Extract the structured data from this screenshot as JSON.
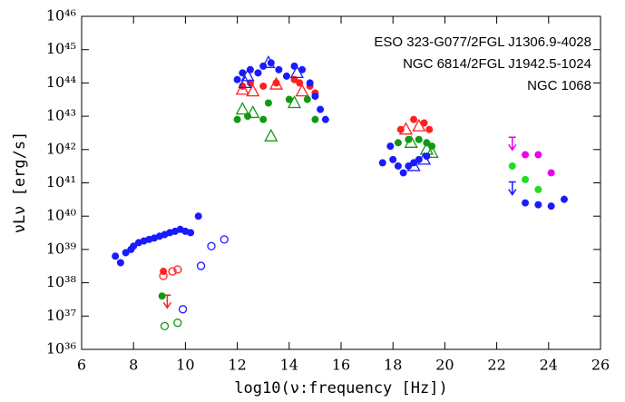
{
  "chart_data": {
    "type": "scatter",
    "xlabel": "log10(ν:frequency [Hz])",
    "ylabel": "νLν [erg/s]",
    "xlim": [
      6,
      26
    ],
    "xticks": [
      6,
      8,
      10,
      12,
      14,
      16,
      18,
      20,
      22,
      24,
      26
    ],
    "ylim": [
      1e+36,
      1e+46
    ],
    "log_y": true,
    "yticks": [
      {
        "value": 1e+36,
        "label": "10³⁶"
      },
      {
        "value": 1e+37,
        "label": "10³⁷"
      },
      {
        "value": 1e+38,
        "label": "10³⁸"
      },
      {
        "value": 1e+39,
        "label": "10³⁹"
      },
      {
        "value": 1e+40,
        "label": "10⁴⁰"
      },
      {
        "value": 1e+41,
        "label": "10⁴¹"
      },
      {
        "value": 1e+42,
        "label": "10⁴²"
      },
      {
        "value": 1e+43,
        "label": "10⁴³"
      },
      {
        "value": 1e+44,
        "label": "10⁴⁴"
      },
      {
        "value": 1e+45,
        "label": "10⁴⁵"
      },
      {
        "value": 1e+46,
        "label": "10⁴⁶"
      }
    ],
    "legend_position": "upper right",
    "legend_separator": "/",
    "series": [
      {
        "name": "ESO 323-G077",
        "color": "#ff2020",
        "x": [
          9.15,
          9.15,
          9.5,
          9.7,
          9.3,
          12.2,
          12.5,
          13.0,
          13.5,
          14.2,
          14.4,
          14.8,
          15.0,
          12.2,
          12.6,
          13.5,
          14.5,
          18.3,
          18.8,
          19.2,
          19.4,
          18.5,
          19.0
        ],
        "values": [
          2.2e+38,
          1.6e+38,
          2.2e+38,
          2.5e+38,
          2e+37,
          8e+43,
          1e+44,
          8e+43,
          1e+44,
          1.26e+44,
          1e+44,
          8e+43,
          5e+43,
          6.3e+43,
          5.6e+43,
          9e+43,
          5.6e+43,
          4e+42,
          8e+42,
          6.3e+42,
          4e+42,
          4e+42,
          5e+42
        ],
        "markers": [
          "filled",
          "open",
          "open",
          "open",
          "limit",
          "filled",
          "filled",
          "filled",
          "filled",
          "filled",
          "filled",
          "filled",
          "filled",
          "triangle",
          "triangle",
          "triangle",
          "triangle",
          "filled",
          "filled",
          "filled",
          "filled",
          "triangle",
          "triangle"
        ]
      },
      {
        "name": "2FGL J1306.9-4028",
        "color": "#ee00ee",
        "x": [
          22.6,
          23.1,
          23.6,
          24.1
        ],
        "values": [
          1.1e+42,
          7e+41,
          7e+41,
          2e+41
        ],
        "markers": [
          "limit",
          "filled",
          "filled",
          "filled"
        ]
      },
      {
        "name": "NGC 6814",
        "color": "#119911",
        "x": [
          9.1,
          9.2,
          9.7,
          12.0,
          12.4,
          13.0,
          13.2,
          14.0,
          14.7,
          15.0,
          12.2,
          12.6,
          13.3,
          14.2,
          18.2,
          18.6,
          19.0,
          19.3,
          19.5,
          18.7,
          19.3,
          19.5
        ],
        "values": [
          4e+37,
          5e+36,
          6.3e+36,
          8e+42,
          1e+43,
          8e+42,
          2.5e+43,
          3.2e+43,
          3.2e+43,
          8e+42,
          1.6e+43,
          1.26e+43,
          2.5e+42,
          2.5e+43,
          1.6e+42,
          2e+42,
          2e+42,
          1.6e+42,
          1.26e+42,
          1.6e+42,
          1e+42,
          8e+41
        ],
        "markers": [
          "filled",
          "open",
          "open",
          "filled",
          "filled",
          "filled",
          "filled",
          "filled",
          "filled",
          "filled",
          "triangle",
          "triangle",
          "triangle",
          "triangle",
          "filled",
          "filled",
          "filled",
          "filled",
          "filled",
          "triangle",
          "triangle",
          "triangle"
        ]
      },
      {
        "name": "2FGL J1942.5-1024",
        "color": "#22dd22",
        "x": [
          22.6,
          23.1,
          23.6
        ],
        "values": [
          3.2e+41,
          1.26e+41,
          6.3e+40
        ],
        "markers": [
          "filled",
          "filled",
          "filled"
        ]
      },
      {
        "name": "NGC 1068",
        "color": "#1a1aff",
        "x": [
          7.3,
          7.5,
          7.7,
          7.9,
          8.0,
          8.2,
          8.4,
          8.6,
          8.8,
          9.0,
          9.2,
          9.4,
          9.6,
          9.8,
          10.0,
          10.2,
          10.5,
          9.9,
          10.6,
          11.0,
          11.5,
          12.0,
          12.2,
          12.5,
          12.8,
          13.0,
          13.3,
          13.6,
          13.9,
          14.2,
          14.5,
          14.8,
          15.0,
          15.2,
          15.4,
          12.3,
          12.4,
          13.2,
          14.3,
          17.6,
          17.9,
          18.0,
          18.2,
          18.4,
          18.6,
          18.8,
          19.0,
          19.3,
          18.8,
          19.2,
          22.6,
          23.1,
          23.6,
          24.1,
          24.6
        ],
        "values": [
          6.3e+38,
          4e+38,
          8e+38,
          1e+39,
          1.26e+39,
          1.6e+39,
          1.8e+39,
          2e+39,
          2.2e+39,
          2.5e+39,
          2.8e+39,
          3.2e+39,
          3.5e+39,
          4e+39,
          3.5e+39,
          3.2e+39,
          1e+40,
          1.6e+37,
          3.2e+38,
          1.26e+39,
          2e+39,
          1.26e+44,
          2e+44,
          2.5e+44,
          2e+44,
          3.2e+44,
          4e+44,
          2.5e+44,
          1.6e+44,
          3.2e+44,
          2.5e+44,
          1e+44,
          4e+43,
          1.6e+43,
          8e+42,
          1e+44,
          1.6e+44,
          4e+44,
          2e+44,
          4e+41,
          1.26e+42,
          5e+41,
          3.2e+41,
          2e+41,
          3.2e+41,
          4e+41,
          5e+41,
          6.3e+41,
          3.2e+41,
          5e+41,
          5e+40,
          2.5e+40,
          2.2e+40,
          2e+40,
          3.2e+40
        ],
        "markers": [
          "filled",
          "filled",
          "filled",
          "filled",
          "filled",
          "filled",
          "filled",
          "filled",
          "filled",
          "filled",
          "filled",
          "filled",
          "filled",
          "filled",
          "filled",
          "filled",
          "filled",
          "open",
          "open",
          "open",
          "open",
          "filled",
          "filled",
          "filled",
          "filled",
          "filled",
          "filled",
          "filled",
          "filled",
          "filled",
          "filled",
          "filled",
          "filled",
          "filled",
          "filled",
          "triangle",
          "triangle",
          "triangle",
          "triangle",
          "filled",
          "filled",
          "filled",
          "filled",
          "filled",
          "filled",
          "filled",
          "filled",
          "filled",
          "triangle",
          "triangle",
          "limit",
          "filled",
          "filled",
          "filled",
          "filled"
        ]
      }
    ]
  }
}
